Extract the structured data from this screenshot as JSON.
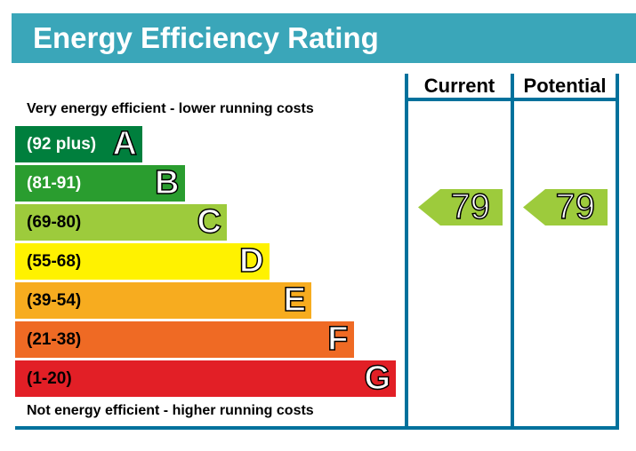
{
  "title": "Energy Efficiency Rating",
  "columns": {
    "current": "Current",
    "potential": "Potential"
  },
  "top_note": "Very energy efficient - lower running costs",
  "bottom_note": "Not energy efficient - higher running costs",
  "chart_data": {
    "type": "bar",
    "categories": [
      "A",
      "B",
      "C",
      "D",
      "E",
      "F",
      "G"
    ],
    "bands": [
      {
        "letter": "A",
        "range": "(92 plus)",
        "color": "#007f3d"
      },
      {
        "letter": "B",
        "range": "(81-91)",
        "color": "#2a9d2f"
      },
      {
        "letter": "C",
        "range": "(69-80)",
        "color": "#9dcb3c"
      },
      {
        "letter": "D",
        "range": "(55-68)",
        "color": "#fff200"
      },
      {
        "letter": "E",
        "range": "(39-54)",
        "color": "#f7ac1f"
      },
      {
        "letter": "F",
        "range": "(21-38)",
        "color": "#ef6a24"
      },
      {
        "letter": "G",
        "range": "(1-20)",
        "color": "#e21f26"
      }
    ],
    "current": {
      "value": "79",
      "band": "C",
      "color": "#9dcb3c"
    },
    "potential": {
      "value": "79",
      "band": "C",
      "color": "#9dcb3c"
    }
  }
}
